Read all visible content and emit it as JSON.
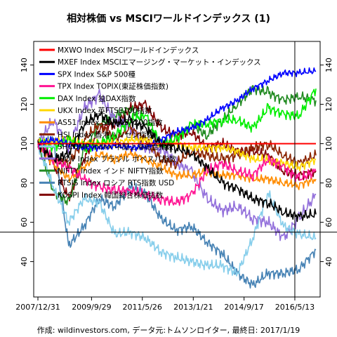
{
  "chart_data": {
    "type": "line",
    "title": "相対株価 vs MSCIワールドインデックス (1)",
    "footer": "作成: wildinvestors.com, データ元:トムソンロイター, 最終日: 2017/1/19",
    "x_dates": [
      "2007-12-31",
      "2008-06-30",
      "2008-12-31",
      "2009-06-30",
      "2009-12-31",
      "2010-06-30",
      "2010-12-31",
      "2011-06-30",
      "2011-12-31",
      "2012-06-30",
      "2012-12-31",
      "2013-06-30",
      "2013-12-31",
      "2014-06-30",
      "2014-12-31",
      "2015-06-30",
      "2015-12-31",
      "2016-06-30",
      "2017-01-19"
    ],
    "x_tick_labels": [
      "2007/12/31",
      "2009/9/29",
      "2011/5/26",
      "2013/1/21",
      "2014/9/17",
      "2016/5/13"
    ],
    "x_tick_dates": [
      "2007-12-31",
      "2009-09-29",
      "2011-05-26",
      "2013-01-21",
      "2014-09-17",
      "2016-05-13"
    ],
    "y_ticks": [
      40,
      60,
      80,
      100,
      120,
      140
    ],
    "ylim": [
      22,
      152
    ],
    "reference_lines": {
      "vertical_date": "2016-05-13",
      "horizontal_value": 55
    },
    "series": [
      {
        "name": "MXWO Index MSCIワールドインデックス",
        "color": "#ff0000",
        "values": [
          100,
          100,
          100,
          100,
          100,
          100,
          100,
          100,
          100,
          100,
          100,
          100,
          100,
          100,
          100,
          100,
          100,
          100,
          100
        ]
      },
      {
        "name": "MXEF Index MSCIエマージング・マーケット・インデックス",
        "color": "#000000",
        "values": [
          100,
          92,
          95,
          110,
          115,
          110,
          112,
          108,
          100,
          98,
          95,
          88,
          80,
          77,
          72,
          70,
          65,
          63,
          64
        ]
      },
      {
        "name": "SPX Index S&P 500種",
        "color": "#0000ff",
        "values": [
          100,
          102,
          100,
          98,
          98,
          99,
          98,
          98,
          102,
          106,
          108,
          112,
          118,
          122,
          128,
          132,
          136,
          136,
          137
        ]
      },
      {
        "name": "TPX Index TOPIX(東証株価指数)",
        "color": "#ff1493",
        "values": [
          100,
          92,
          88,
          82,
          78,
          76,
          76,
          74,
          72,
          70,
          74,
          86,
          90,
          86,
          84,
          92,
          88,
          82,
          86
        ]
      },
      {
        "name": "DAX Index 独DAX指数",
        "color": "#00ee00",
        "values": [
          100,
          98,
          102,
          98,
          100,
          104,
          112,
          115,
          100,
          102,
          110,
          110,
          112,
          112,
          108,
          118,
          115,
          114,
          128
        ]
      },
      {
        "name": "UKX Index 英FTSE100指数",
        "color": "#ffd700",
        "values": [
          100,
          101,
          102,
          100,
          100,
          100,
          102,
          102,
          100,
          100,
          98,
          98,
          98,
          96,
          92,
          92,
          90,
          88,
          92
        ]
      },
      {
        "name": "AS51 Index S&P/ASX200指数",
        "color": "#ff8c00",
        "values": [
          100,
          90,
          82,
          88,
          95,
          92,
          95,
          92,
          88,
          84,
          84,
          86,
          84,
          84,
          82,
          82,
          80,
          79,
          82
        ]
      },
      {
        "name": "HSI Index 香港ハンセン指数",
        "color": "#8b2500",
        "values": [
          100,
          92,
          90,
          102,
          110,
          102,
          108,
          102,
          92,
          90,
          96,
          94,
          92,
          94,
          98,
          100,
          94,
          90,
          94
        ]
      },
      {
        "name": "SHCOMP Index 中国上海総合指数",
        "color": "#87ceeb",
        "values": [
          100,
          78,
          60,
          72,
          70,
          54,
          55,
          52,
          45,
          42,
          40,
          38,
          38,
          34,
          52,
          75,
          58,
          54,
          52
        ]
      },
      {
        "name": "IBOV Index ブラジル ボベスパ指数",
        "color": "#9370db",
        "values": [
          100,
          112,
          98,
          118,
          125,
          112,
          108,
          98,
          98,
          90,
          86,
          72,
          66,
          68,
          62,
          60,
          52,
          62,
          74
        ]
      },
      {
        "name": "NIFTY Index インド NIFTY指数",
        "color": "#228b22",
        "values": [
          100,
          76,
          70,
          96,
          110,
          114,
          118,
          110,
          100,
          102,
          110,
          104,
          112,
          120,
          128,
          126,
          122,
          124,
          122
        ]
      },
      {
        "name": "RTSIS Index ロシア RTS指数 USD",
        "color": "#4682b4",
        "values": [
          100,
          102,
          48,
          58,
          72,
          68,
          78,
          75,
          62,
          56,
          58,
          50,
          44,
          34,
          28,
          34,
          34,
          36,
          46
        ]
      },
      {
        "name": "KOSPI Index 韓国総合株価指数",
        "color": "#800000",
        "values": [
          100,
          90,
          72,
          92,
          108,
          110,
          118,
          120,
          108,
          104,
          106,
          98,
          100,
          96,
          96,
          94,
          86,
          84,
          86
        ]
      }
    ]
  }
}
